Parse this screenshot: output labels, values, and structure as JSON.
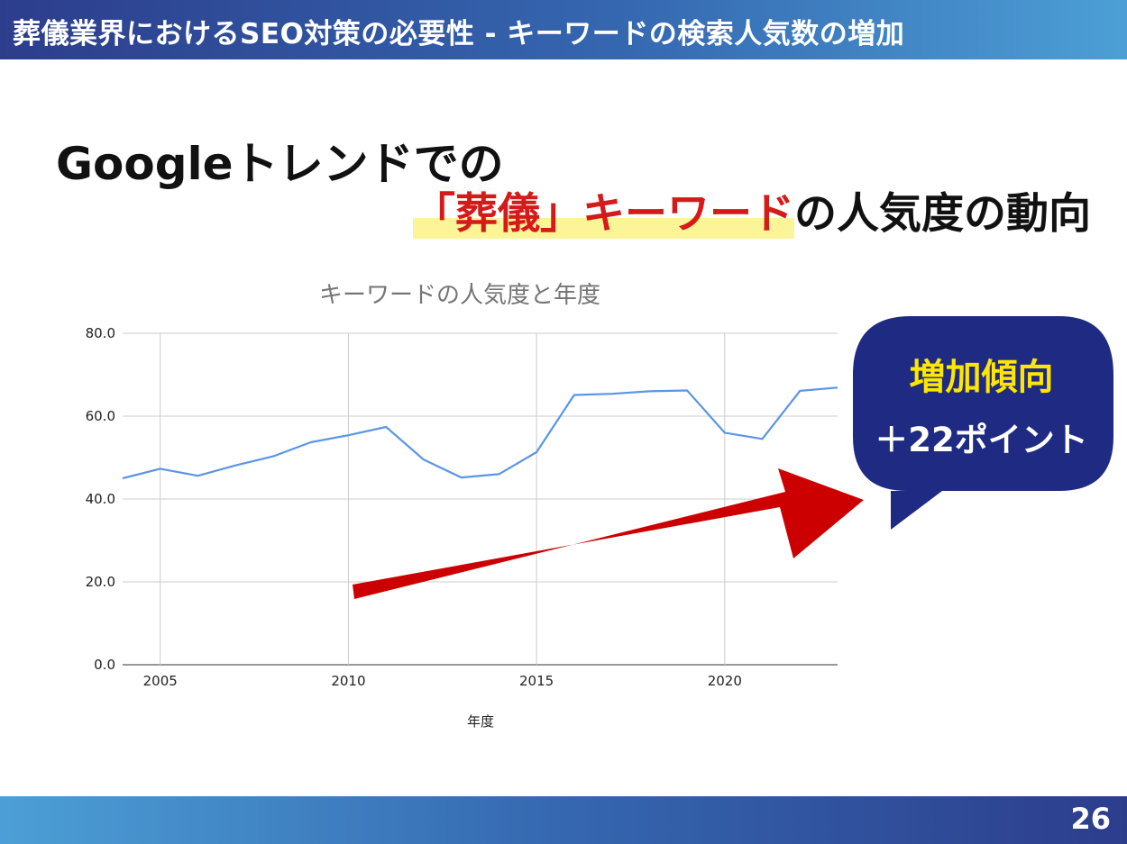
{
  "header": {
    "title": "葬儀業界におけるSEO対策の必要性 - キーワードの検索人気数の増加"
  },
  "headline": {
    "line1": "Googleトレンドでの",
    "line2_highlight": "「葬儀」キーワード",
    "line2_rest": "の人気度の動向"
  },
  "callout": {
    "title": "増加傾向",
    "subtitle": "＋22ポイント",
    "bg_color": "#1f2a83",
    "title_color": "#ffe600"
  },
  "arrow": {
    "color": "#cc0000"
  },
  "chart_data": {
    "type": "line",
    "title": "キーワードの人気度と年度",
    "xlabel": "年度",
    "ylabel": "",
    "xlim": [
      2004,
      2023
    ],
    "ylim": [
      0,
      80
    ],
    "xticks": [
      "2005",
      "2010",
      "2015",
      "2020"
    ],
    "yticks": [
      "0.0",
      "20.0",
      "40.0",
      "60.0",
      "80.0"
    ],
    "grid": true,
    "series": [
      {
        "color": "#5b95e6",
        "x": [
          2004,
          2005,
          2006,
          2007,
          2008,
          2009,
          2010,
          2011,
          2012,
          2013,
          2014,
          2015,
          2016,
          2017,
          2018,
          2019,
          2020,
          2021,
          2022,
          2023
        ],
        "y": [
          45.0,
          47.3,
          45.6,
          48.1,
          50.3,
          53.7,
          55.4,
          57.4,
          49.5,
          45.2,
          46.0,
          51.3,
          65.1,
          65.4,
          66.0,
          66.2,
          56.0,
          54.5,
          66.1,
          66.9
        ]
      }
    ]
  },
  "footer": {
    "page": "26"
  }
}
